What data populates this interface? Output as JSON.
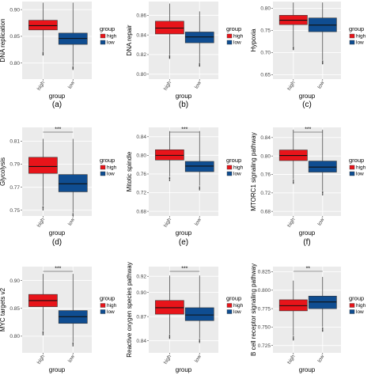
{
  "colors": {
    "high": "#e8141a",
    "low": "#0f4d91",
    "panel": "#ebebeb",
    "grid": "#ffffff"
  },
  "chart_data": [
    {
      "type": "box",
      "label": "(a)",
      "ylabel": "DNA replication",
      "xlabel": "group",
      "categories": [
        "high",
        "low"
      ],
      "yticks": [
        "0.80",
        "0.85",
        "0.90"
      ],
      "ylim": [
        0.77,
        0.915
      ],
      "legend": {
        "title": "group",
        "entries": [
          "high",
          "low"
        ],
        "position": "right"
      },
      "boxes": [
        {
          "group": "high",
          "q1": 0.862,
          "median": 0.87,
          "q3": 0.88,
          "whisker_low": 0.822,
          "whisker_high": 0.913
        },
        {
          "group": "low",
          "q1": 0.835,
          "median": 0.846,
          "q3": 0.856,
          "whisker_low": 0.795,
          "whisker_high": 0.913
        }
      ],
      "significance": ""
    },
    {
      "type": "box",
      "label": "(b)",
      "ylabel": "DNA repair",
      "xlabel": "group",
      "categories": [
        "high",
        "low"
      ],
      "yticks": [
        "0.80",
        "0.82",
        "0.84",
        "0.86"
      ],
      "ylim": [
        0.795,
        0.874
      ],
      "legend": {
        "title": "group",
        "entries": [
          "high",
          "low"
        ],
        "position": "right"
      },
      "boxes": [
        {
          "group": "high",
          "q1": 0.841,
          "median": 0.847,
          "q3": 0.854,
          "whisker_low": 0.82,
          "whisker_high": 0.872
        },
        {
          "group": "low",
          "q1": 0.832,
          "median": 0.838,
          "q3": 0.843,
          "whisker_low": 0.812,
          "whisker_high": 0.864
        }
      ],
      "significance": ""
    },
    {
      "type": "box",
      "label": "(c)",
      "ylabel": "Hypoxia",
      "xlabel": "group",
      "categories": [
        "high",
        "low"
      ],
      "yticks": [
        "0.65",
        "0.70",
        "0.75",
        "0.80"
      ],
      "ylim": [
        0.64,
        0.815
      ],
      "legend": {
        "title": "group",
        "entries": [
          "high",
          "low"
        ],
        "position": "right"
      },
      "boxes": [
        {
          "group": "high",
          "q1": 0.763,
          "median": 0.773,
          "q3": 0.784,
          "whisker_low": 0.715,
          "whisker_high": 0.813
        },
        {
          "group": "low",
          "q1": 0.747,
          "median": 0.762,
          "q3": 0.778,
          "whisker_low": 0.683,
          "whisker_high": 0.813
        }
      ],
      "significance": ""
    },
    {
      "type": "box",
      "label": "(d)",
      "ylabel": "Glycolysis",
      "xlabel": "group",
      "categories": [
        "high",
        "low"
      ],
      "yticks": [
        "0.75",
        "0.77",
        "0.79",
        "0.81"
      ],
      "ylim": [
        0.745,
        0.822
      ],
      "legend": {
        "title": "group",
        "entries": [
          "high",
          "low"
        ],
        "position": "right"
      },
      "boxes": [
        {
          "group": "high",
          "q1": 0.782,
          "median": 0.788,
          "q3": 0.796,
          "whisker_low": 0.754,
          "whisker_high": 0.812
        },
        {
          "group": "low",
          "q1": 0.766,
          "median": 0.773,
          "q3": 0.781,
          "whisker_low": 0.748,
          "whisker_high": 0.812
        }
      ],
      "significance": "***"
    },
    {
      "type": "box",
      "label": "(e)",
      "ylabel": "Mitotic spindle",
      "xlabel": "group",
      "categories": [
        "high",
        "low"
      ],
      "yticks": [
        "0.68",
        "0.72",
        "0.76",
        "0.80",
        "0.84"
      ],
      "ylim": [
        0.67,
        0.86
      ],
      "legend": {
        "title": "group",
        "entries": [
          "high",
          "low"
        ],
        "position": "right"
      },
      "boxes": [
        {
          "group": "high",
          "q1": 0.79,
          "median": 0.8,
          "q3": 0.812,
          "whisker_low": 0.755,
          "whisker_high": 0.852
        },
        {
          "group": "low",
          "q1": 0.765,
          "median": 0.777,
          "q3": 0.787,
          "whisker_low": 0.735,
          "whisker_high": 0.852
        }
      ],
      "significance": "***"
    },
    {
      "type": "box",
      "label": "(f)",
      "ylabel": "MTORC1 signaling pathway",
      "xlabel": "group",
      "categories": [
        "high",
        "low"
      ],
      "yticks": [
        "0.68",
        "0.72",
        "0.76",
        "0.80",
        "0.84"
      ],
      "ylim": [
        0.67,
        0.862
      ],
      "legend": {
        "title": "group",
        "entries": [
          "high",
          "low"
        ],
        "position": "right"
      },
      "boxes": [
        {
          "group": "high",
          "q1": 0.79,
          "median": 0.801,
          "q3": 0.813,
          "whisker_low": 0.75,
          "whisker_high": 0.857
        },
        {
          "group": "low",
          "q1": 0.765,
          "median": 0.776,
          "q3": 0.789,
          "whisker_low": 0.725,
          "whisker_high": 0.857
        }
      ],
      "significance": "***"
    },
    {
      "type": "box",
      "label": "",
      "ylabel": "MYC targets v2",
      "xlabel": "group",
      "categories": [
        "high",
        "low"
      ],
      "yticks": [
        "0.80",
        "0.85",
        "0.90"
      ],
      "ylim": [
        0.77,
        0.925
      ],
      "legend": {
        "title": "group",
        "entries": [
          "high",
          "low"
        ],
        "position": "right"
      },
      "boxes": [
        {
          "group": "high",
          "q1": 0.853,
          "median": 0.864,
          "q3": 0.875,
          "whisker_low": 0.81,
          "whisker_high": 0.912
        },
        {
          "group": "low",
          "q1": 0.823,
          "median": 0.835,
          "q3": 0.846,
          "whisker_low": 0.79,
          "whisker_high": 0.912
        }
      ],
      "significance": "***"
    },
    {
      "type": "box",
      "label": "",
      "ylabel": "Reactive oxygen species pathway",
      "xlabel": "group",
      "categories": [
        "high",
        "low"
      ],
      "yticks": [
        "0.84",
        "0.87",
        "0.90",
        "0.92"
      ],
      "ylim": [
        0.825,
        0.932
      ],
      "legend": {
        "title": "group",
        "entries": [
          "high",
          "low"
        ],
        "position": "right"
      },
      "boxes": [
        {
          "group": "high",
          "q1": 0.873,
          "median": 0.881,
          "q3": 0.89,
          "whisker_low": 0.848,
          "whisker_high": 0.921
        },
        {
          "group": "low",
          "q1": 0.865,
          "median": 0.872,
          "q3": 0.881,
          "whisker_low": 0.843,
          "whisker_high": 0.921
        }
      ],
      "significance": "***"
    },
    {
      "type": "box",
      "label": "",
      "ylabel": "B cell receptor signaling pathway",
      "xlabel": "group",
      "categories": [
        "high",
        "low"
      ],
      "yticks": [
        "0.725",
        "0.750",
        "0.775",
        "0.800",
        "0.825"
      ],
      "ylim": [
        0.715,
        0.832
      ],
      "legend": {
        "title": "group",
        "entries": [
          "high",
          "low"
        ],
        "position": "right"
      },
      "boxes": [
        {
          "group": "high",
          "q1": 0.772,
          "median": 0.779,
          "q3": 0.787,
          "whisker_low": 0.738,
          "whisker_high": 0.813
        },
        {
          "group": "low",
          "q1": 0.775,
          "median": 0.784,
          "q3": 0.792,
          "whisker_low": 0.75,
          "whisker_high": 0.818
        }
      ],
      "significance": "**"
    }
  ]
}
